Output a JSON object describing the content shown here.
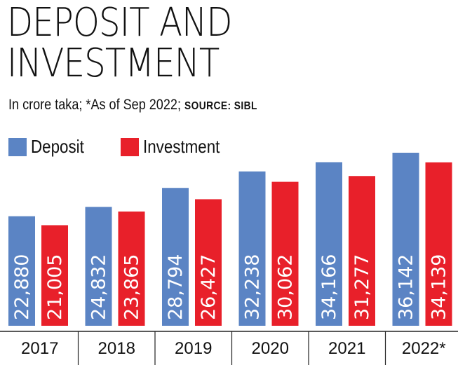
{
  "header": {
    "title_line1": "DEPOSIT AND",
    "title_line2": "INVESTMENT",
    "subtitle": "In crore taka; *As of Sep 2022;",
    "source": "SOURCE: SIBL"
  },
  "colors": {
    "deposit": "#5b84c4",
    "investment": "#e8202a"
  },
  "chart_data": {
    "type": "bar",
    "title": "DEPOSIT AND INVESTMENT",
    "subtitle": "In crore taka; *As of Sep 2022; SOURCE: SIBL",
    "categories": [
      "2017",
      "2018",
      "2019",
      "2020",
      "2021",
      "2022*"
    ],
    "series": [
      {
        "name": "Deposit",
        "values": [
          22880,
          24832,
          28794,
          32238,
          34166,
          36142
        ],
        "labels": [
          "22,880",
          "24,832",
          "28,794",
          "32,238",
          "34,166",
          "36,142"
        ]
      },
      {
        "name": "Investment",
        "values": [
          21005,
          23865,
          26427,
          30062,
          31277,
          34139
        ],
        "labels": [
          "21,005",
          "23,865",
          "26,427",
          "30,062",
          "31,277",
          "34,139"
        ]
      }
    ],
    "xlabel": "",
    "ylabel": "",
    "ylim": [
      0,
      38000
    ],
    "grid": false,
    "legend": "top-left"
  }
}
